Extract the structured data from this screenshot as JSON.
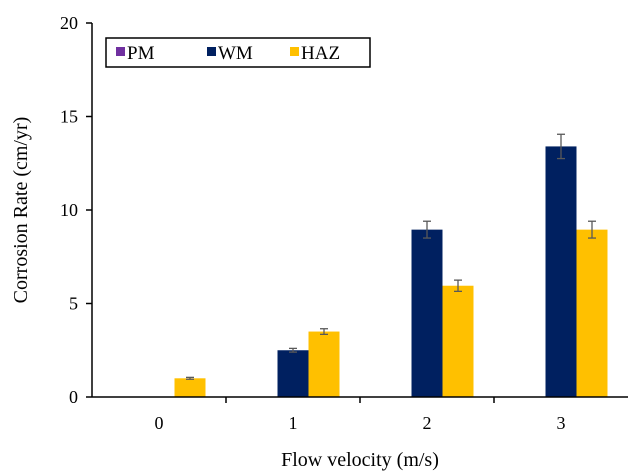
{
  "chart_data": {
    "type": "bar",
    "categories": [
      "0",
      "1",
      "2",
      "3"
    ],
    "xlabel": "Flow velocity (m/s)",
    "ylabel": "Corrosion Rate (cm/yr)",
    "ylim": [
      0,
      20
    ],
    "yticks": [
      "0",
      "5",
      "10",
      "15",
      "20"
    ],
    "grid": false,
    "legend_position": "top-left",
    "series": [
      {
        "name": "PM",
        "color": "#7030a0",
        "values": [
          0,
          0,
          0,
          0
        ],
        "errors": [
          0,
          0,
          0,
          0
        ]
      },
      {
        "name": "WM",
        "color": "#002060",
        "values": [
          0,
          2.5,
          8.95,
          13.4
        ],
        "errors": [
          0,
          0.1,
          0.45,
          0.65
        ]
      },
      {
        "name": "HAZ",
        "color": "#ffc000",
        "values": [
          1.0,
          3.5,
          5.95,
          8.95
        ],
        "errors": [
          0.05,
          0.15,
          0.3,
          0.45
        ]
      }
    ]
  }
}
